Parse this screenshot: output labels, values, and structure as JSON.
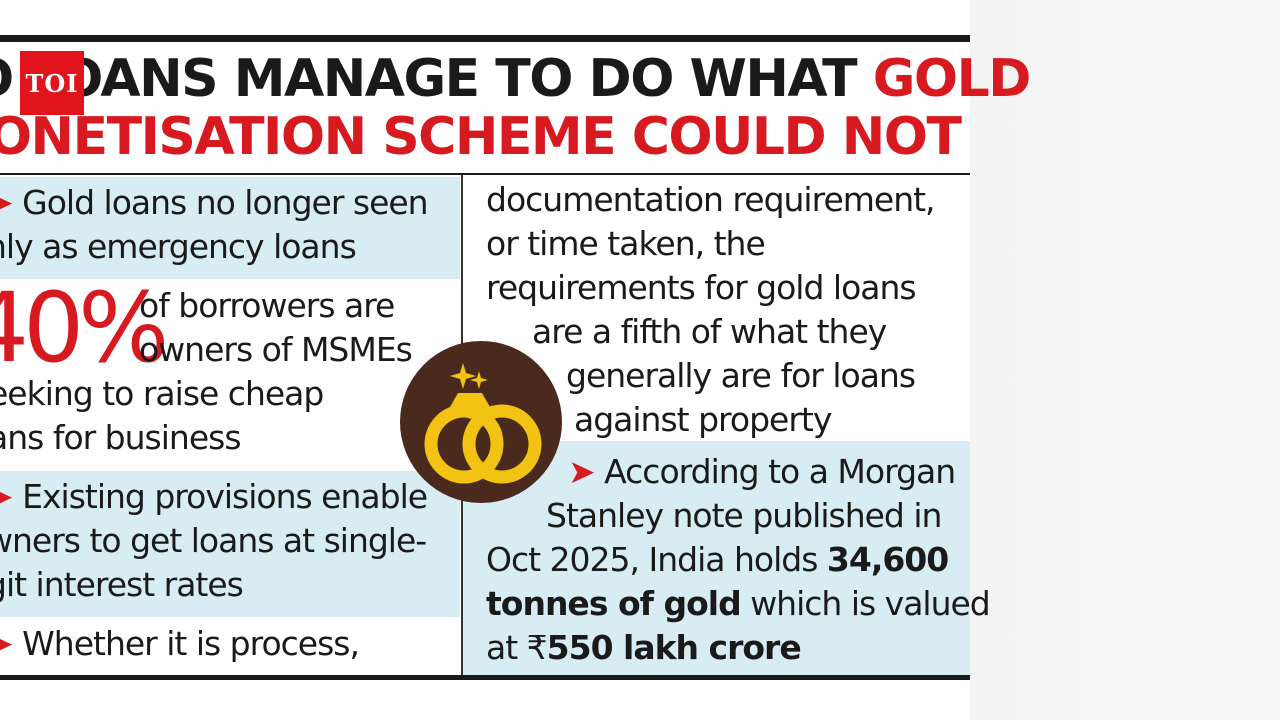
{
  "brand": {
    "logo_text": "TOI"
  },
  "headline": {
    "line1_black": "O LOANS MANAGE TO DO WHAT ",
    "line1_red": "GOLD",
    "line2_red": "IONETISATION SCHEME COULD NOT"
  },
  "colors": {
    "red": "#d71920",
    "band": "#d7edf3",
    "ink": "#1a1a1a",
    "ring_bg": "#4a2a1c",
    "gold": "#f2c313"
  },
  "left": {
    "b1": {
      "arrow": "➤",
      "line1": "Gold loans no longer seen",
      "line2": "nly as emergency loans"
    },
    "stat": {
      "value": "40%",
      "line1": "of borrowers are",
      "line2": "owners of MSMEs",
      "line3": "eeking to raise cheap",
      "line4": "ans for business"
    },
    "b2": {
      "arrow": "➤",
      "line1": "Existing provisions enable",
      "line2": "wners to get loans at single-",
      "line3": "git interest rates"
    },
    "b3": {
      "arrow": "➤",
      "line1": "Whether it is process,"
    }
  },
  "right": {
    "p1": {
      "line1": "documentation requirement,",
      "line2": "or time taken, the",
      "line3": "requirements for gold loans",
      "line4": "are a fifth of what they",
      "line5": "generally are for loans",
      "line6": "against property"
    },
    "p2": {
      "arrow": "➤",
      "line1": "According to a Morgan",
      "line2": "Stanley note published in",
      "line3a": "Oct 2025, India holds ",
      "line3b": "34,600",
      "line4a": "tonnes of gold",
      "line4b": " which is valued",
      "line5a": "at ₹",
      "line5b": "550 lakh crore"
    }
  },
  "icon": {
    "name": "gold-rings-icon"
  }
}
